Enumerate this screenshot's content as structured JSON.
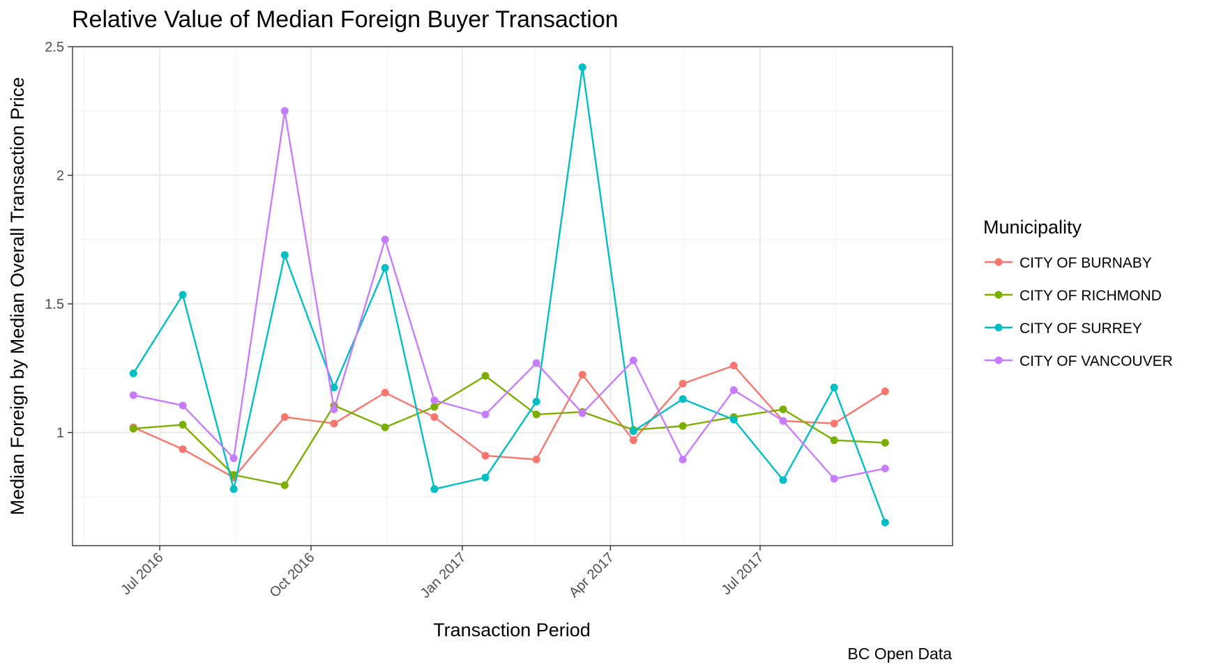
{
  "chart_data": {
    "type": "line",
    "title": "Relative Value of Median Foreign Buyer Transaction",
    "xlabel": "Transaction Period",
    "ylabel": "Median Foreign by Median Overall Transaction Price",
    "caption": "BC Open Data",
    "x": [
      "2016-06",
      "2016-07",
      "2016-08",
      "2016-09",
      "2016-10",
      "2016-11",
      "2016-12",
      "2017-01",
      "2017-02",
      "2017-03",
      "2017-04",
      "2017-05",
      "2017-06",
      "2017-07",
      "2017-08",
      "2017-09"
    ],
    "x_tick_labels": [
      {
        "date": "2016-07-01",
        "label": "Jul 2016"
      },
      {
        "date": "2016-10-01",
        "label": "Oct 2016"
      },
      {
        "date": "2017-01-01",
        "label": "Jan 2017"
      },
      {
        "date": "2017-04-01",
        "label": "Apr 2017"
      },
      {
        "date": "2017-07-01",
        "label": "Jul 2017"
      }
    ],
    "y_ticks": [
      1,
      1.5,
      2,
      2.5
    ],
    "y_tick_labels": [
      "1",
      "1.5",
      "2",
      "2.5"
    ],
    "ylim": [
      0.56,
      2.5
    ],
    "xlim": [
      "2016-05-09",
      "2017-10-26"
    ],
    "grid": true,
    "legend": {
      "title": "Municipality",
      "position": "right"
    },
    "series": [
      {
        "name": "CITY OF BURNABY",
        "color": "#F8766D",
        "values": [
          1.02,
          0.935,
          0.825,
          1.06,
          1.035,
          1.155,
          1.06,
          0.91,
          0.895,
          1.225,
          0.97,
          1.19,
          1.26,
          1.045,
          1.035,
          1.16
        ]
      },
      {
        "name": "CITY OF RICHMOND",
        "color": "#7CAE00",
        "values": [
          1.015,
          1.03,
          0.835,
          0.795,
          1.105,
          1.02,
          1.1,
          1.22,
          1.07,
          1.08,
          1.01,
          1.025,
          1.06,
          1.09,
          0.97,
          0.96
        ]
      },
      {
        "name": "CITY OF SURREY",
        "color": "#00BFC4",
        "values": [
          1.23,
          1.535,
          0.78,
          1.69,
          1.175,
          1.64,
          0.78,
          0.825,
          1.12,
          2.42,
          1.005,
          1.13,
          1.05,
          0.815,
          1.175,
          0.65
        ]
      },
      {
        "name": "CITY OF VANCOUVER",
        "color": "#C77CFF",
        "values": [
          1.145,
          1.105,
          0.9,
          2.25,
          1.09,
          1.75,
          1.125,
          1.07,
          1.27,
          1.075,
          1.28,
          0.895,
          1.165,
          1.045,
          0.82,
          0.86
        ]
      }
    ]
  }
}
